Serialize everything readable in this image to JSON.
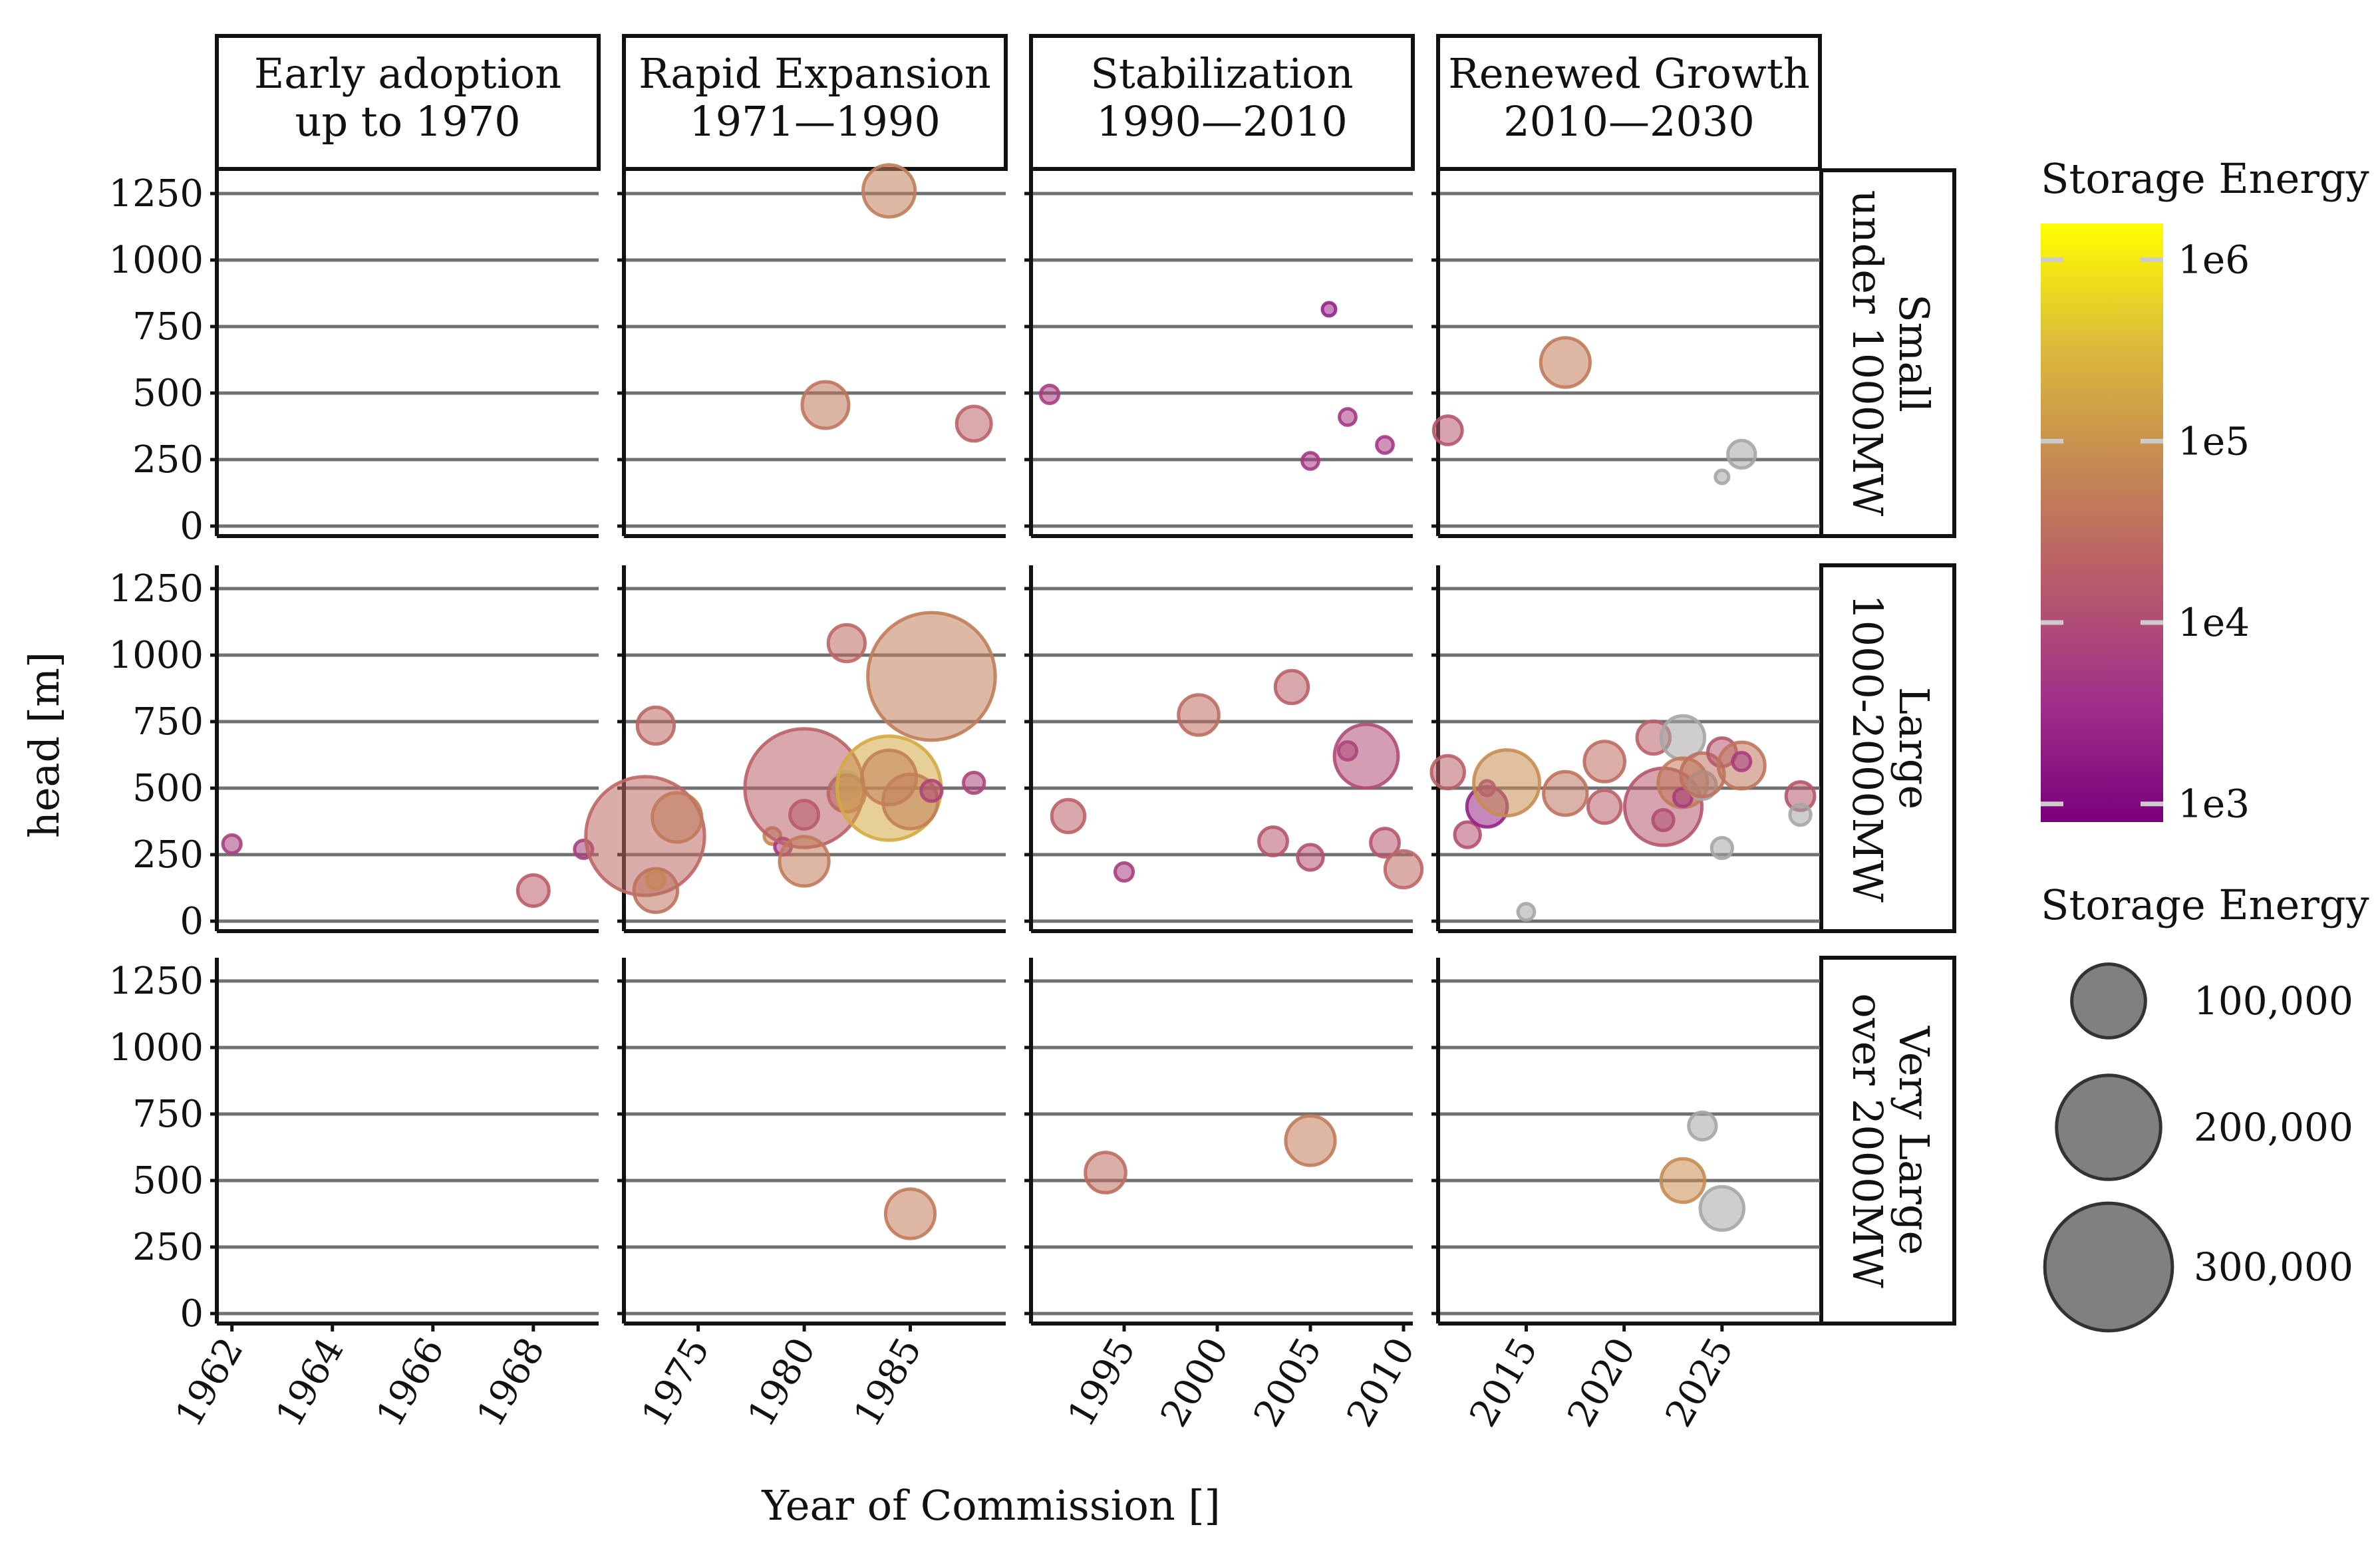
{
  "chart_data": {
    "type": "scatter",
    "title": "",
    "xlabel": "Year of Commission []",
    "ylabel": "head [m]",
    "ylim": [
      0,
      1300
    ],
    "y_ticks": [
      0,
      250,
      500,
      750,
      1000,
      1250
    ],
    "y_tick_labels": [
      "0",
      "250",
      "500",
      "750",
      "1000",
      "1250"
    ],
    "grid": "horizontal",
    "columns": [
      {
        "line1": "Early adoption",
        "line2": "up to 1970",
        "xlim": [
          1961.7,
          1969.3
        ],
        "x_ticks": [
          1962,
          1964,
          1966,
          1968
        ],
        "x_tick_labels": [
          "1962",
          "1964",
          "1966",
          "1968"
        ]
      },
      {
        "line1": "Rapid Expansion",
        "line2": "1971—1990",
        "xlim": [
          1971.5,
          1989.5
        ],
        "x_ticks": [
          1975,
          1980,
          1985
        ],
        "x_tick_labels": [
          "1975",
          "1980",
          "1985"
        ]
      },
      {
        "line1": "Stabilization",
        "line2": "1990—2010",
        "xlim": [
          1990,
          2010.5
        ],
        "x_ticks": [
          1995,
          2000,
          2005,
          2010
        ],
        "x_tick_labels": [
          "1995",
          "2000",
          "2005",
          "2010"
        ]
      },
      {
        "line1": "Renewed Growth",
        "line2": "2010—2030",
        "xlim": [
          2010.5,
          2030
        ],
        "x_ticks": [
          2015,
          2020,
          2025
        ],
        "x_tick_labels": [
          "2015",
          "2020",
          "2025"
        ]
      }
    ],
    "rows": [
      {
        "line1": "Small",
        "line2": "under 1000MW"
      },
      {
        "line1": "Large",
        "line2": "1000-2000MW"
      },
      {
        "line1": "Very Large",
        "line2": "over 2000MW"
      }
    ],
    "color_legend": {
      "title": "Storage Energy",
      "scale": "log",
      "min_exp": 2.9,
      "max_exp": 6.2,
      "ticks": [
        "1e3",
        "1e4",
        "1e5",
        "1e6"
      ],
      "tick_exps": [
        3,
        4,
        5,
        6
      ],
      "colors": [
        "#7b007b",
        "#a0308a",
        "#b85a6a",
        "#c58a52",
        "#dcbb3a",
        "#ffff00"
      ]
    },
    "size_legend": {
      "title": "Storage Energy",
      "values": [
        100000,
        200000,
        300000
      ],
      "labels": [
        "100,000",
        "200,000",
        "300,000"
      ]
    },
    "points": [
      {
        "row": 0,
        "col": 1,
        "x": 1984,
        "y": 1260,
        "e": 50000
      },
      {
        "row": 0,
        "col": 1,
        "x": 1981,
        "y": 455,
        "e": 40000
      },
      {
        "row": 0,
        "col": 1,
        "x": 1988,
        "y": 385,
        "e": 22000
      },
      {
        "row": 0,
        "col": 2,
        "x": 1991,
        "y": 495,
        "e": 6000
      },
      {
        "row": 0,
        "col": 2,
        "x": 2006,
        "y": 815,
        "e": 2500
      },
      {
        "row": 0,
        "col": 2,
        "x": 2007,
        "y": 410,
        "e": 5000
      },
      {
        "row": 0,
        "col": 2,
        "x": 2005,
        "y": 245,
        "e": 5000
      },
      {
        "row": 0,
        "col": 2,
        "x": 2009,
        "y": 305,
        "e": 5000
      },
      {
        "row": 0,
        "col": 3,
        "x": 2017,
        "y": 615,
        "e": 45000
      },
      {
        "row": 0,
        "col": 3,
        "x": 2011,
        "y": 360,
        "e": 15000
      },
      {
        "row": 0,
        "col": 3,
        "x": 2026,
        "y": 270,
        "e": null,
        "s": 14000
      },
      {
        "row": 0,
        "col": 3,
        "x": 2025,
        "y": 185,
        "e": null,
        "s": 1500
      },
      {
        "row": 1,
        "col": 0,
        "x": 1962,
        "y": 290,
        "e": 6000
      },
      {
        "row": 1,
        "col": 0,
        "x": 1968,
        "y": 115,
        "e": 18000
      },
      {
        "row": 1,
        "col": 0,
        "x": 1969,
        "y": 270,
        "e": 6000
      },
      {
        "row": 1,
        "col": 1,
        "x": 1973,
        "y": 735,
        "e": 25000
      },
      {
        "row": 1,
        "col": 1,
        "x": 1972.5,
        "y": 320,
        "e": 25000,
        "s": 260000
      },
      {
        "row": 1,
        "col": 1,
        "x": 1974,
        "y": 390,
        "e": 45000
      },
      {
        "row": 1,
        "col": 1,
        "x": 1973,
        "y": 115,
        "e": 35000
      },
      {
        "row": 1,
        "col": 1,
        "x": 1973,
        "y": 155,
        "e": 70000,
        "s": 6000
      },
      {
        "row": 1,
        "col": 1,
        "x": 1978.5,
        "y": 320,
        "e": 65000,
        "s": 5000
      },
      {
        "row": 1,
        "col": 1,
        "x": 1979,
        "y": 280,
        "e": 5000
      },
      {
        "row": 1,
        "col": 1,
        "x": 1980,
        "y": 400,
        "e": 15000
      },
      {
        "row": 1,
        "col": 1,
        "x": 1980,
        "y": 500,
        "e": 20000,
        "s": 260000
      },
      {
        "row": 1,
        "col": 1,
        "x": 1980,
        "y": 225,
        "e": 45000
      },
      {
        "row": 1,
        "col": 1,
        "x": 1982,
        "y": 1045,
        "e": 25000
      },
      {
        "row": 1,
        "col": 1,
        "x": 1982,
        "y": 510,
        "e": null,
        "s": 14000
      },
      {
        "row": 1,
        "col": 1,
        "x": 1982,
        "y": 480,
        "e": 25000
      },
      {
        "row": 1,
        "col": 1,
        "x": 1984,
        "y": 500,
        "e": 200000,
        "s": 200000
      },
      {
        "row": 1,
        "col": 1,
        "x": 1984,
        "y": 540,
        "e": 55000
      },
      {
        "row": 1,
        "col": 1,
        "x": 1985,
        "y": 450,
        "e": 55000
      },
      {
        "row": 1,
        "col": 1,
        "x": 1986,
        "y": 490,
        "e": 8000
      },
      {
        "row": 1,
        "col": 1,
        "x": 1986,
        "y": 920,
        "e": 50000,
        "s": 300000
      },
      {
        "row": 1,
        "col": 1,
        "x": 1988,
        "y": 520,
        "e": 8000
      },
      {
        "row": 1,
        "col": 2,
        "x": 1992,
        "y": 395,
        "e": 20000
      },
      {
        "row": 1,
        "col": 2,
        "x": 1995,
        "y": 185,
        "e": 6000
      },
      {
        "row": 1,
        "col": 2,
        "x": 1999,
        "y": 775,
        "e": 30000
      },
      {
        "row": 1,
        "col": 2,
        "x": 2003,
        "y": 300,
        "e": 15000
      },
      {
        "row": 1,
        "col": 2,
        "x": 2004,
        "y": 880,
        "e": 20000
      },
      {
        "row": 1,
        "col": 2,
        "x": 2005,
        "y": 240,
        "e": 12000
      },
      {
        "row": 1,
        "col": 2,
        "x": 2007,
        "y": 640,
        "e": 6000
      },
      {
        "row": 1,
        "col": 2,
        "x": 2008,
        "y": 620,
        "e": 10000,
        "s": 75000
      },
      {
        "row": 1,
        "col": 2,
        "x": 2009,
        "y": 295,
        "e": 15000
      },
      {
        "row": 1,
        "col": 2,
        "x": 2010,
        "y": 195,
        "e": 25000
      },
      {
        "row": 1,
        "col": 3,
        "x": 2011,
        "y": 560,
        "e": 20000
      },
      {
        "row": 1,
        "col": 3,
        "x": 2012,
        "y": 325,
        "e": 12000
      },
      {
        "row": 1,
        "col": 3,
        "x": 2013,
        "y": 430,
        "e": 2500,
        "s": 30000
      },
      {
        "row": 1,
        "col": 3,
        "x": 2013,
        "y": 500,
        "e": 4000
      },
      {
        "row": 1,
        "col": 3,
        "x": 2014,
        "y": 520,
        "e": 80000
      },
      {
        "row": 1,
        "col": 3,
        "x": 2015,
        "y": 35,
        "e": null,
        "s": 5000
      },
      {
        "row": 1,
        "col": 3,
        "x": 2017,
        "y": 480,
        "e": 35000
      },
      {
        "row": 1,
        "col": 3,
        "x": 2019,
        "y": 600,
        "e": 30000
      },
      {
        "row": 1,
        "col": 3,
        "x": 2019,
        "y": 430,
        "e": 20000
      },
      {
        "row": 1,
        "col": 3,
        "x": 2021.5,
        "y": 690,
        "e": 20000
      },
      {
        "row": 1,
        "col": 3,
        "x": 2022,
        "y": 380,
        "e": 8000
      },
      {
        "row": 1,
        "col": 3,
        "x": 2022,
        "y": 430,
        "e": 15000,
        "s": 110000
      },
      {
        "row": 1,
        "col": 3,
        "x": 2023,
        "y": 690,
        "e": null,
        "s": 35000
      },
      {
        "row": 1,
        "col": 3,
        "x": 2023,
        "y": 520,
        "e": 45000
      },
      {
        "row": 1,
        "col": 3,
        "x": 2023,
        "y": 465,
        "e": 6000
      },
      {
        "row": 1,
        "col": 3,
        "x": 2024,
        "y": 510,
        "e": null,
        "s": 14000
      },
      {
        "row": 1,
        "col": 3,
        "x": 2024,
        "y": 550,
        "e": 35000
      },
      {
        "row": 1,
        "col": 3,
        "x": 2025,
        "y": 635,
        "e": 15000
      },
      {
        "row": 1,
        "col": 3,
        "x": 2026,
        "y": 585,
        "e": 40000
      },
      {
        "row": 1,
        "col": 3,
        "x": 2026,
        "y": 600,
        "e": 6000
      },
      {
        "row": 1,
        "col": 3,
        "x": 2025,
        "y": 275,
        "e": null,
        "s": 8000
      },
      {
        "row": 1,
        "col": 3,
        "x": 2029,
        "y": 470,
        "e": 15000
      },
      {
        "row": 1,
        "col": 3,
        "x": 2029,
        "y": 400,
        "e": null,
        "s": 8000
      },
      {
        "row": 2,
        "col": 1,
        "x": 1985,
        "y": 375,
        "e": 45000
      },
      {
        "row": 2,
        "col": 2,
        "x": 1994,
        "y": 530,
        "e": 30000
      },
      {
        "row": 2,
        "col": 2,
        "x": 2005,
        "y": 650,
        "e": 45000
      },
      {
        "row": 2,
        "col": 3,
        "x": 2024,
        "y": 705,
        "e": null,
        "s": 14000
      },
      {
        "row": 2,
        "col": 3,
        "x": 2023,
        "y": 500,
        "e": 80000,
        "s": 35000
      },
      {
        "row": 2,
        "col": 3,
        "x": 2025,
        "y": 395,
        "e": null,
        "s": 35000
      }
    ]
  }
}
